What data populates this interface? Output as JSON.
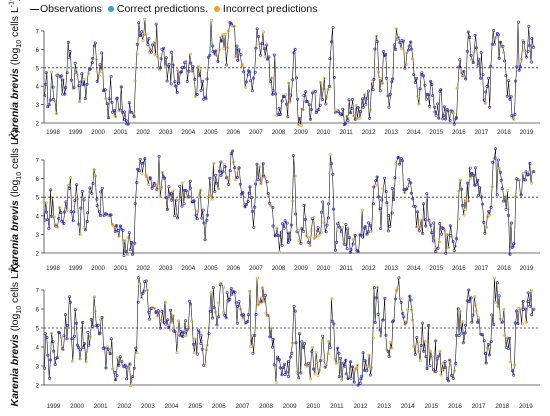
{
  "legend": {
    "observations": "Observations",
    "correct": "Correct predictions.",
    "incorrect": "Incorrect predictions"
  },
  "colors": {
    "observations": "#000000",
    "correct": "#2f2fd6",
    "incorrect": "#f0a21e",
    "threshold": "#333333"
  },
  "ylabel": {
    "species": "Karenia brevis",
    "unit_pre": "(log",
    "unit_sub": "10",
    "unit_mid": " cells L",
    "unit_sup": "-1",
    "unit_post": ")"
  },
  "chart_data": [
    {
      "type": "line",
      "panel": "top",
      "xticklabels": [
        "1998",
        "1999",
        "2000",
        "2001",
        "2002",
        "2003",
        "2004",
        "2005",
        "2006",
        "2007",
        "2008",
        "2009",
        "2010",
        "2011",
        "2012",
        "2013",
        "2014",
        "2015",
        "2016",
        "2017",
        "2018",
        "2019"
      ],
      "xlim": [
        1998,
        2019
      ],
      "ylim": [
        2,
        7
      ],
      "yticks": [
        2,
        3,
        4,
        5,
        6,
        7
      ],
      "threshold": 5,
      "series": [
        {
          "name": "Observations",
          "role": "observations"
        },
        {
          "name": "Correct predictions.",
          "role": "correct"
        },
        {
          "name": "Incorrect predictions",
          "role": "incorrect"
        }
      ],
      "incorrect_share": 0.22
    },
    {
      "type": "line",
      "panel": "middle",
      "xticklabels": [
        "1998",
        "1999",
        "2000",
        "2001",
        "2002",
        "2003",
        "2004",
        "2005",
        "2006",
        "2007",
        "2008",
        "2009",
        "2010",
        "2011",
        "2012",
        "2013",
        "2014",
        "2015",
        "2016",
        "2017",
        "2018",
        "2019"
      ],
      "xlim": [
        1998,
        2019
      ],
      "ylim": [
        2,
        7
      ],
      "yticks": [
        2,
        3,
        4,
        5,
        6,
        7
      ],
      "threshold": 5,
      "series": [
        {
          "name": "Observations",
          "role": "observations"
        },
        {
          "name": "Correct predictions.",
          "role": "correct"
        },
        {
          "name": "Incorrect predictions",
          "role": "incorrect"
        }
      ],
      "incorrect_share": 0.28
    },
    {
      "type": "line",
      "panel": "bottom",
      "xticklabels": [
        "1999",
        "2000",
        "2001",
        "2002",
        "2003",
        "2004",
        "2005",
        "2006",
        "2007",
        "2008",
        "2009",
        "2010",
        "2011",
        "2012",
        "2013",
        "2014",
        "2015",
        "2016",
        "2017",
        "2018",
        "2019"
      ],
      "xlim": [
        1998,
        2019
      ],
      "ylim": [
        2,
        7
      ],
      "yticks": [
        2,
        3,
        4,
        5,
        6,
        7
      ],
      "threshold": 5,
      "series": [
        {
          "name": "Observations",
          "role": "observations"
        },
        {
          "name": "Correct predictions.",
          "role": "correct"
        },
        {
          "name": "Incorrect predictions",
          "role": "incorrect"
        }
      ],
      "incorrect_share": 0.3
    }
  ],
  "observation_profile": [
    [
      1998.0,
      3.0
    ],
    [
      1998.1,
      5.4
    ],
    [
      1998.2,
      2.6
    ],
    [
      1998.35,
      4.6
    ],
    [
      1998.5,
      2.8
    ],
    [
      1998.65,
      5.2
    ],
    [
      1998.8,
      3.6
    ],
    [
      1999.0,
      4.5
    ],
    [
      1999.1,
      6.6
    ],
    [
      1999.2,
      3.2
    ],
    [
      1999.35,
      5.8
    ],
    [
      1999.5,
      2.8
    ],
    [
      1999.6,
      4.9
    ],
    [
      1999.8,
      3.4
    ],
    [
      2000.0,
      5.4
    ],
    [
      2000.15,
      6.0
    ],
    [
      2000.3,
      4.5
    ],
    [
      2000.45,
      5.6
    ],
    [
      2000.6,
      3.0
    ],
    [
      2000.8,
      4.2
    ],
    [
      2001.0,
      2.6
    ],
    [
      2001.2,
      3.4
    ],
    [
      2001.4,
      2.2
    ],
    [
      2001.6,
      2.8
    ],
    [
      2001.8,
      2.4
    ],
    [
      2002.0,
      7.0
    ],
    [
      2002.15,
      6.4
    ],
    [
      2002.3,
      6.8
    ],
    [
      2002.5,
      5.8
    ],
    [
      2002.7,
      6.2
    ],
    [
      2002.9,
      5.2
    ],
    [
      2003.0,
      6.0
    ],
    [
      2003.2,
      4.8
    ],
    [
      2003.4,
      5.6
    ],
    [
      2003.6,
      4.2
    ],
    [
      2003.8,
      5.2
    ],
    [
      2004.0,
      4.6
    ],
    [
      2004.2,
      5.8
    ],
    [
      2004.4,
      3.6
    ],
    [
      2004.6,
      5.0
    ],
    [
      2004.8,
      3.0
    ],
    [
      2005.0,
      5.6
    ],
    [
      2005.15,
      6.6
    ],
    [
      2005.3,
      5.2
    ],
    [
      2005.5,
      6.9
    ],
    [
      2005.7,
      6.0
    ],
    [
      2005.9,
      6.6
    ],
    [
      2006.0,
      7.2
    ],
    [
      2006.15,
      5.4
    ],
    [
      2006.3,
      6.4
    ],
    [
      2006.5,
      4.4
    ],
    [
      2006.7,
      5.6
    ],
    [
      2006.85,
      3.4
    ],
    [
      2007.0,
      6.8
    ],
    [
      2007.15,
      6.2
    ],
    [
      2007.3,
      6.6
    ],
    [
      2007.5,
      5.4
    ],
    [
      2007.7,
      4.0
    ],
    [
      2007.9,
      2.6
    ],
    [
      2008.0,
      2.5
    ],
    [
      2008.2,
      3.4
    ],
    [
      2008.4,
      2.6
    ],
    [
      2008.6,
      6.2
    ],
    [
      2008.7,
      2.8
    ],
    [
      2008.9,
      2.4
    ],
    [
      2009.0,
      3.6
    ],
    [
      2009.2,
      2.4
    ],
    [
      2009.4,
      3.4
    ],
    [
      2009.6,
      2.8
    ],
    [
      2009.8,
      4.2
    ],
    [
      2010.0,
      3.0
    ],
    [
      2010.2,
      6.6
    ],
    [
      2010.3,
      2.6
    ],
    [
      2010.5,
      3.0
    ],
    [
      2010.7,
      2.4
    ],
    [
      2010.9,
      2.8
    ],
    [
      2011.0,
      2.6
    ],
    [
      2011.2,
      2.8
    ],
    [
      2011.4,
      2.4
    ],
    [
      2011.6,
      3.4
    ],
    [
      2011.8,
      2.8
    ],
    [
      2012.0,
      5.2
    ],
    [
      2012.1,
      6.8
    ],
    [
      2012.25,
      3.6
    ],
    [
      2012.4,
      6.2
    ],
    [
      2012.6,
      3.2
    ],
    [
      2012.8,
      5.4
    ],
    [
      2013.0,
      7.4
    ],
    [
      2013.15,
      6.4
    ],
    [
      2013.3,
      5.2
    ],
    [
      2013.5,
      6.0
    ],
    [
      2013.7,
      4.2
    ],
    [
      2013.9,
      3.4
    ],
    [
      2014.0,
      4.6
    ],
    [
      2014.2,
      3.0
    ],
    [
      2014.4,
      3.8
    ],
    [
      2014.6,
      2.4
    ],
    [
      2014.8,
      3.2
    ],
    [
      2015.0,
      2.4
    ],
    [
      2015.2,
      2.8
    ],
    [
      2015.4,
      2.2
    ],
    [
      2015.6,
      5.6
    ],
    [
      2015.8,
      4.0
    ],
    [
      2016.0,
      6.8
    ],
    [
      2016.15,
      5.6
    ],
    [
      2016.3,
      6.2
    ],
    [
      2016.5,
      4.6
    ],
    [
      2016.7,
      3.4
    ],
    [
      2016.9,
      4.0
    ],
    [
      2017.0,
      6.6
    ],
    [
      2017.15,
      6.8
    ],
    [
      2017.3,
      6.0
    ],
    [
      2017.5,
      5.2
    ],
    [
      2017.7,
      3.4
    ],
    [
      2017.9,
      2.4
    ],
    [
      2018.0,
      5.8
    ],
    [
      2018.15,
      5.4
    ],
    [
      2018.3,
      6.0
    ],
    [
      2018.45,
      5.6
    ],
    [
      2018.6,
      6.8
    ],
    [
      2018.75,
      5.6
    ],
    [
      2018.9,
      6.4
    ]
  ]
}
